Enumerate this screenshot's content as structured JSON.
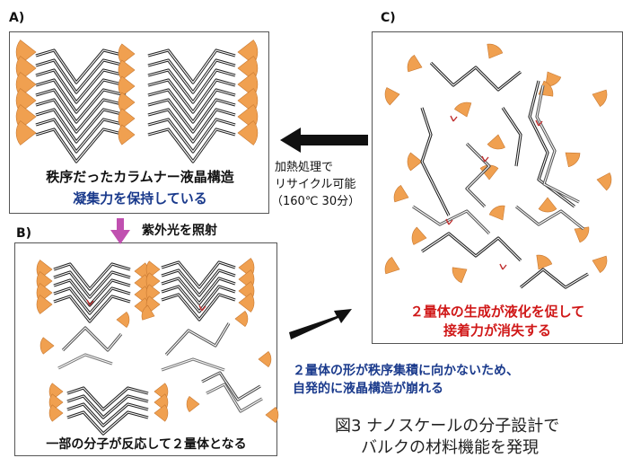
{
  "panel_a": {
    "label": "A)",
    "caption_line1": "秩序だったカラムナー液晶構造",
    "caption_line2": "凝集力を保持している"
  },
  "panel_b": {
    "label": "B)",
    "caption": "一部の分子が反応して２量体となる"
  },
  "panel_c": {
    "label": "C)",
    "caption_line1": "２量体の生成が液化を促して",
    "caption_line2": "接着力が消失する"
  },
  "arrow_c_to_a": {
    "line1": "加熱処理で",
    "line2": "リサイクル可能",
    "line3": "（160℃ 30分）"
  },
  "arrow_a_to_b": {
    "label": "紫外光を照射"
  },
  "arrow_b_to_c": {
    "line1": "２量体の形が秩序集積に向かないため、",
    "line2": "自発的に液晶構造が崩れる"
  },
  "figure_caption": {
    "line1": "図3 ナノスケールの分子設計で",
    "line2": "バルクの材料機能を発現"
  },
  "colors": {
    "wedge": "#f0a050",
    "chain": "#222222",
    "caption_blue": "#1a3a8c",
    "caption_red": "#d01818",
    "uv_arrow": "#c050b0"
  }
}
